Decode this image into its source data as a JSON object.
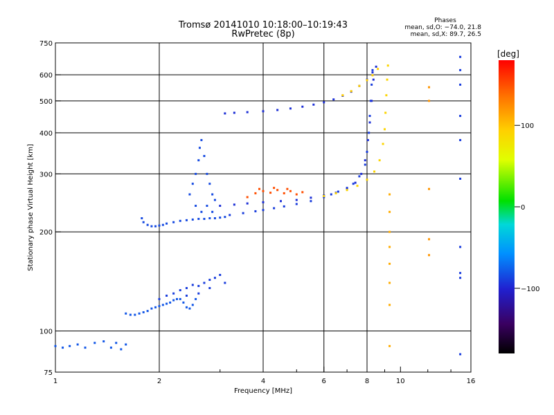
{
  "header": {
    "title_line1": "Tromsø 20141010 10:18:00–10:19:43",
    "title_line2": "RwPretec (8p)",
    "phases_title": "Phases",
    "phases_line_o": "mean, sd,O: −74.0, 21.8",
    "phases_line_x": "mean, sd,X:  89.7, 26.5"
  },
  "chart_data": {
    "type": "scatter",
    "xlabel": "Frequency [MHz]",
    "ylabel": "Stationary phase Virtual Height [km]",
    "x_scale": "log",
    "y_scale": "log",
    "xlim": [
      1,
      16
    ],
    "ylim": [
      75,
      750
    ],
    "x_ticks": [
      1,
      2,
      4,
      6,
      8,
      10,
      16
    ],
    "y_ticks": [
      75,
      100,
      200,
      300,
      400,
      500,
      600,
      750
    ],
    "x_tick_labels": [
      "1",
      "2",
      "4",
      "6",
      "8",
      "10",
      "16"
    ],
    "y_tick_labels": [
      "75",
      "100",
      "200",
      "300",
      "400",
      "500",
      "600",
      "750"
    ],
    "grid_x": [
      2,
      4,
      6,
      8
    ],
    "grid_y": [
      100,
      200,
      300,
      400,
      500,
      600
    ],
    "colorbar": {
      "label": "[deg]",
      "range": [
        -180,
        180
      ],
      "ticks": [
        -100,
        0,
        100
      ],
      "tick_labels": [
        "−100",
        "0",
        "100"
      ],
      "colors": [
        "#000000",
        "#3a0060",
        "#2020d0",
        "#0090ff",
        "#00d8d8",
        "#00e000",
        "#e0ff00",
        "#ffd000",
        "#ff7000",
        "#ff0000"
      ]
    },
    "traces": [
      {
        "name": "o-low-echo",
        "phase": -80,
        "points": [
          [
            1.0,
            90
          ],
          [
            1.05,
            89
          ],
          [
            1.1,
            90
          ],
          [
            1.16,
            91
          ],
          [
            1.22,
            89
          ],
          [
            1.3,
            92
          ],
          [
            1.38,
            93
          ],
          [
            1.45,
            89
          ],
          [
            1.5,
            92
          ],
          [
            1.55,
            88
          ],
          [
            1.6,
            91
          ]
        ]
      },
      {
        "name": "o-E-trace",
        "phase": -80,
        "points": [
          [
            1.6,
            113
          ],
          [
            1.65,
            112
          ],
          [
            1.7,
            112
          ],
          [
            1.75,
            113
          ],
          [
            1.8,
            114
          ],
          [
            1.85,
            115
          ],
          [
            1.9,
            117
          ],
          [
            1.95,
            118
          ],
          [
            2.0,
            119
          ],
          [
            2.05,
            120
          ],
          [
            2.1,
            121
          ],
          [
            2.15,
            122
          ],
          [
            2.2,
            124
          ],
          [
            2.25,
            125
          ],
          [
            2.3,
            125
          ],
          [
            2.35,
            122
          ],
          [
            2.4,
            118
          ],
          [
            2.45,
            117
          ],
          [
            2.5,
            120
          ],
          [
            2.55,
            125
          ]
        ]
      },
      {
        "name": "o-Es-cluster",
        "phase": -90,
        "points": [
          [
            2.0,
            125
          ],
          [
            2.1,
            128
          ],
          [
            2.2,
            130
          ],
          [
            2.3,
            133
          ],
          [
            2.4,
            135
          ],
          [
            2.5,
            138
          ],
          [
            2.6,
            137
          ],
          [
            2.7,
            140
          ],
          [
            2.8,
            143
          ],
          [
            2.9,
            145
          ],
          [
            3.0,
            148
          ],
          [
            3.1,
            140
          ],
          [
            2.4,
            128
          ],
          [
            2.6,
            130
          ],
          [
            2.8,
            135
          ]
        ]
      },
      {
        "name": "o-F1-hook",
        "phase": -85,
        "points": [
          [
            1.78,
            220
          ],
          [
            1.8,
            214
          ],
          [
            1.85,
            210
          ],
          [
            1.9,
            208
          ],
          [
            1.95,
            208
          ],
          [
            2.0,
            209
          ],
          [
            2.05,
            210
          ],
          [
            2.1,
            212
          ],
          [
            2.2,
            214
          ],
          [
            2.3,
            216
          ],
          [
            2.4,
            217
          ],
          [
            2.5,
            218
          ],
          [
            2.6,
            219
          ],
          [
            2.7,
            219
          ],
          [
            2.8,
            220
          ],
          [
            2.9,
            220
          ],
          [
            3.0,
            221
          ],
          [
            3.1,
            222
          ]
        ]
      },
      {
        "name": "o-spread-F",
        "phase": -85,
        "points": [
          [
            2.45,
            260
          ],
          [
            2.5,
            280
          ],
          [
            2.55,
            300
          ],
          [
            2.6,
            330
          ],
          [
            2.62,
            360
          ],
          [
            2.65,
            380
          ],
          [
            2.7,
            340
          ],
          [
            2.75,
            300
          ],
          [
            2.8,
            280
          ],
          [
            2.85,
            260
          ],
          [
            2.9,
            250
          ],
          [
            2.55,
            240
          ],
          [
            2.65,
            230
          ],
          [
            2.75,
            240
          ],
          [
            2.85,
            230
          ]
        ]
      },
      {
        "name": "o-F2-trace",
        "phase": -90,
        "points": [
          [
            3.2,
            225
          ],
          [
            3.5,
            228
          ],
          [
            3.8,
            231
          ],
          [
            4.0,
            233
          ],
          [
            4.3,
            236
          ],
          [
            4.6,
            239
          ],
          [
            5.0,
            243
          ],
          [
            5.5,
            248
          ],
          [
            6.0,
            255
          ],
          [
            6.3,
            260
          ],
          [
            6.6,
            265
          ],
          [
            7.0,
            272
          ],
          [
            7.3,
            280
          ],
          [
            7.6,
            295
          ],
          [
            7.9,
            320
          ],
          [
            8.0,
            350
          ],
          [
            8.1,
            400
          ],
          [
            8.15,
            450
          ],
          [
            8.2,
            500
          ],
          [
            8.25,
            560
          ],
          [
            8.3,
            620
          ]
        ]
      },
      {
        "name": "o-F2-upper",
        "phase": -95,
        "points": [
          [
            3.0,
            240
          ],
          [
            3.3,
            242
          ],
          [
            3.6,
            244
          ],
          [
            4.0,
            246
          ],
          [
            4.5,
            248
          ],
          [
            5.0,
            250
          ],
          [
            5.5,
            254
          ],
          [
            6.0,
            258
          ],
          [
            6.5,
            263
          ],
          [
            7.0,
            270
          ],
          [
            7.4,
            282
          ],
          [
            7.7,
            300
          ],
          [
            7.9,
            330
          ],
          [
            8.05,
            380
          ],
          [
            8.15,
            430
          ],
          [
            8.25,
            500
          ],
          [
            8.35,
            580
          ]
        ]
      },
      {
        "name": "x-F2-trace",
        "phase": 90,
        "points": [
          [
            6.0,
            257
          ],
          [
            6.5,
            262
          ],
          [
            7.0,
            268
          ],
          [
            7.5,
            276
          ],
          [
            8.0,
            288
          ],
          [
            8.4,
            305
          ],
          [
            8.7,
            330
          ],
          [
            8.9,
            370
          ],
          [
            9.0,
            410
          ],
          [
            9.05,
            460
          ],
          [
            9.1,
            520
          ],
          [
            9.15,
            580
          ],
          [
            9.2,
            640
          ]
        ]
      },
      {
        "name": "o-F2-second-hop",
        "phase": -95,
        "points": [
          [
            3.1,
            458
          ],
          [
            3.3,
            460
          ],
          [
            3.6,
            462
          ],
          [
            4.0,
            465
          ],
          [
            4.4,
            469
          ],
          [
            4.8,
            474
          ],
          [
            5.2,
            480
          ],
          [
            5.6,
            487
          ],
          [
            6.0,
            495
          ],
          [
            6.4,
            505
          ],
          [
            6.8,
            518
          ],
          [
            7.2,
            533
          ],
          [
            7.6,
            555
          ],
          [
            8.0,
            580
          ],
          [
            8.3,
            610
          ],
          [
            8.5,
            635
          ]
        ]
      },
      {
        "name": "x-second-hop",
        "phase": 95,
        "points": [
          [
            6.8,
            520
          ],
          [
            7.2,
            535
          ],
          [
            7.6,
            555
          ],
          [
            8.0,
            578
          ],
          [
            8.3,
            598
          ],
          [
            8.6,
            625
          ]
        ]
      },
      {
        "name": "phase-orange-cluster",
        "phase": 150,
        "points": [
          [
            3.6,
            255
          ],
          [
            3.8,
            262
          ],
          [
            4.0,
            266
          ],
          [
            4.2,
            263
          ],
          [
            4.4,
            268
          ],
          [
            4.6,
            262
          ],
          [
            4.8,
            266
          ],
          [
            5.0,
            260
          ],
          [
            5.2,
            264
          ],
          [
            3.9,
            270
          ],
          [
            4.3,
            272
          ],
          [
            4.7,
            270
          ]
        ]
      },
      {
        "name": "x-vertical-9.3",
        "phase": 110,
        "points": [
          [
            9.3,
            200
          ],
          [
            9.3,
            180
          ],
          [
            9.3,
            160
          ],
          [
            9.3,
            140
          ],
          [
            9.3,
            120
          ],
          [
            9.3,
            90
          ],
          [
            9.3,
            230
          ],
          [
            9.3,
            260
          ]
        ]
      },
      {
        "name": "x-vertical-12",
        "phase": 120,
        "points": [
          [
            12.1,
            550
          ],
          [
            12.1,
            500
          ],
          [
            12.1,
            270
          ],
          [
            12.1,
            190
          ],
          [
            12.1,
            170
          ]
        ]
      },
      {
        "name": "o-vertical-15",
        "phase": -90,
        "points": [
          [
            14.9,
            680
          ],
          [
            14.9,
            620
          ],
          [
            14.9,
            560
          ],
          [
            14.9,
            450
          ],
          [
            14.9,
            380
          ],
          [
            14.9,
            290
          ],
          [
            14.9,
            180
          ],
          [
            14.9,
            150
          ],
          [
            14.9,
            145
          ],
          [
            14.9,
            85
          ]
        ]
      }
    ]
  }
}
